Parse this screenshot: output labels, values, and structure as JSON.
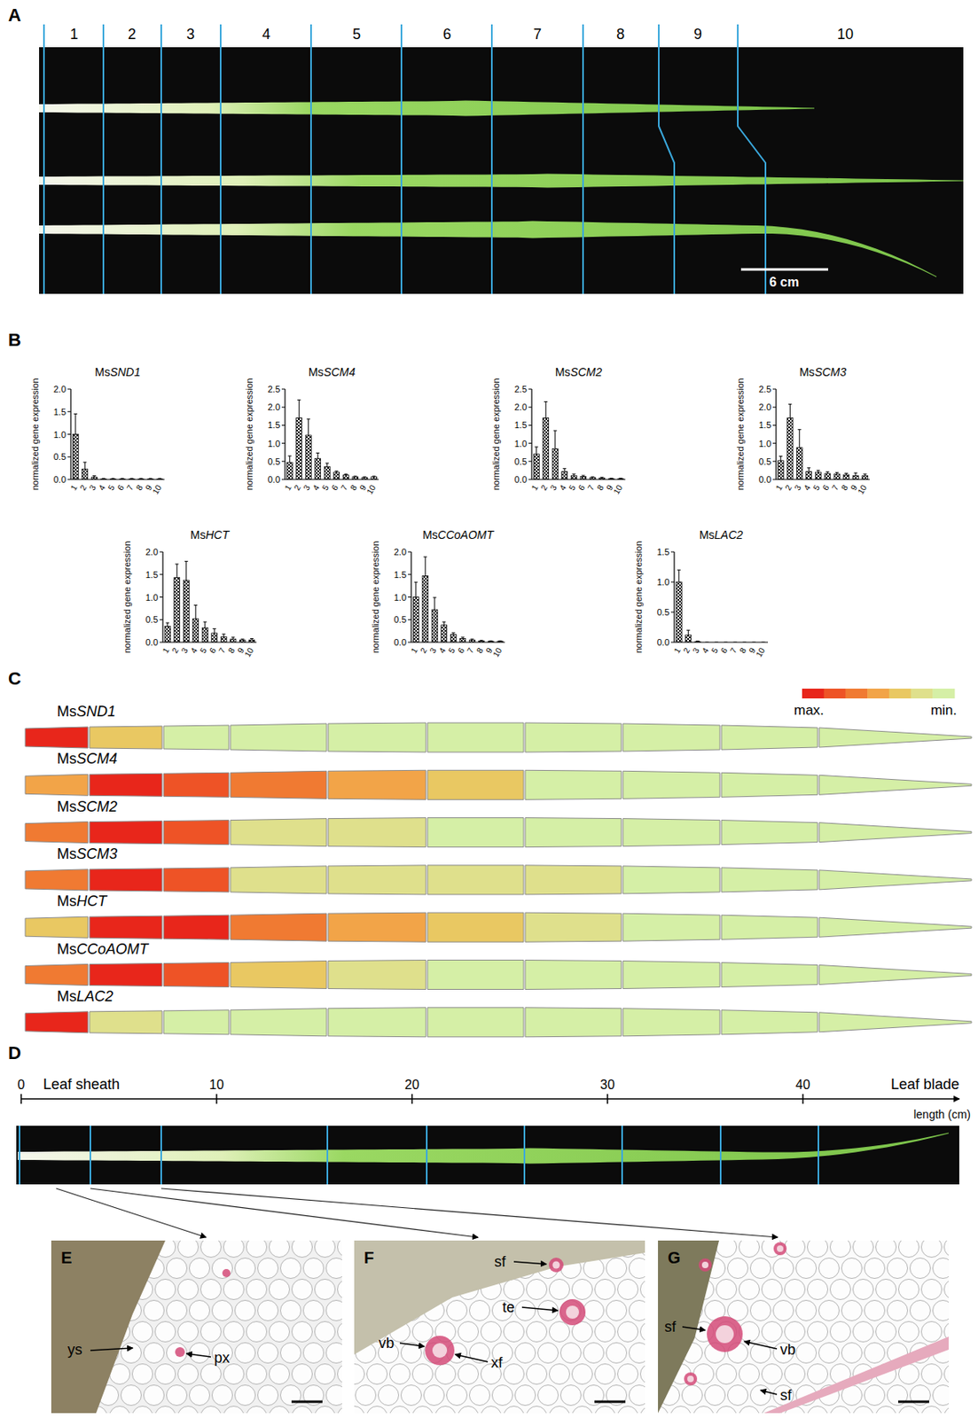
{
  "panel_a": {
    "letter": "A",
    "segments": [
      "1",
      "2",
      "3",
      "4",
      "5",
      "6",
      "7",
      "8",
      "9",
      "10"
    ],
    "scale_bar": "6 cm"
  },
  "panel_b": {
    "letter": "B"
  },
  "chart_data": [
    {
      "type": "bar",
      "title": "MsSND1",
      "y_label": "normalized gene expression",
      "color": "#000000",
      "categories": [
        "1",
        "2",
        "3",
        "4",
        "5",
        "6",
        "7",
        "8",
        "9",
        "10"
      ],
      "values": [
        1.0,
        0.23,
        0.05,
        0.01,
        0.01,
        0.01,
        0.01,
        0.01,
        0.01,
        0.01
      ],
      "errors": [
        0.45,
        0.15,
        0.03,
        0.01,
        0.01,
        0.01,
        0.01,
        0.01,
        0.01,
        0.01
      ],
      "ylim": [
        0,
        2
      ],
      "yticks": [
        {
          "value": 0,
          "label": "0.0"
        },
        {
          "value": 0.5,
          "label": "0.5"
        },
        {
          "value": 1,
          "label": "1.0"
        },
        {
          "value": 1.5,
          "label": "1.5"
        },
        {
          "value": 2,
          "label": "2.0"
        }
      ]
    },
    {
      "type": "bar",
      "title": "MsSCM4",
      "y_label": "normalized gene expression",
      "color": "#000000",
      "categories": [
        "1",
        "2",
        "3",
        "4",
        "5",
        "6",
        "7",
        "8",
        "9",
        "10"
      ],
      "values": [
        0.47,
        1.7,
        1.22,
        0.58,
        0.35,
        0.2,
        0.12,
        0.07,
        0.05,
        0.07
      ],
      "errors": [
        0.18,
        0.5,
        0.45,
        0.15,
        0.1,
        0.03,
        0.03,
        0.02,
        0.02,
        0.02
      ],
      "ylim": [
        0,
        2.5
      ],
      "yticks": [
        {
          "value": 0,
          "label": "0.0"
        },
        {
          "value": 0.5,
          "label": "0.5"
        },
        {
          "value": 1,
          "label": "1.0"
        },
        {
          "value": 1.5,
          "label": "1.5"
        },
        {
          "value": 2,
          "label": "2.0"
        },
        {
          "value": 2.5,
          "label": "2.5"
        }
      ]
    },
    {
      "type": "bar",
      "title": "MsSCM2",
      "y_label": "normalized gene expression",
      "color": "#000000",
      "categories": [
        "1",
        "2",
        "3",
        "4",
        "5",
        "6",
        "7",
        "8",
        "9",
        "10"
      ],
      "values": [
        0.7,
        1.7,
        0.85,
        0.22,
        0.1,
        0.08,
        0.05,
        0.04,
        0.02,
        0.02
      ],
      "errors": [
        0.2,
        0.45,
        0.5,
        0.08,
        0.05,
        0.03,
        0.02,
        0.02,
        0.01,
        0.01
      ],
      "ylim": [
        0,
        2.5
      ],
      "yticks": [
        {
          "value": 0,
          "label": "0.0"
        },
        {
          "value": 0.5,
          "label": "0.5"
        },
        {
          "value": 1,
          "label": "1.0"
        },
        {
          "value": 1.5,
          "label": "1.5"
        },
        {
          "value": 2,
          "label": "2.0"
        },
        {
          "value": 2.5,
          "label": "2.5"
        }
      ]
    },
    {
      "type": "bar",
      "title": "MsSCM3",
      "y_label": "normalized gene expression",
      "color": "#000000",
      "categories": [
        "1",
        "2",
        "3",
        "4",
        "5",
        "6",
        "7",
        "8",
        "9",
        "10"
      ],
      "values": [
        0.52,
        1.7,
        0.88,
        0.22,
        0.2,
        0.16,
        0.15,
        0.13,
        0.1,
        0.1
      ],
      "errors": [
        0.12,
        0.38,
        0.5,
        0.1,
        0.05,
        0.05,
        0.04,
        0.04,
        0.08,
        0.05
      ],
      "ylim": [
        0,
        2.5
      ],
      "yticks": [
        {
          "value": 0,
          "label": "0.0"
        },
        {
          "value": 0.5,
          "label": "0.5"
        },
        {
          "value": 1,
          "label": "1.0"
        },
        {
          "value": 1.5,
          "label": "1.5"
        },
        {
          "value": 2,
          "label": "2.0"
        },
        {
          "value": 2.5,
          "label": "2.5"
        }
      ]
    },
    {
      "type": "bar",
      "title": "MsHCT",
      "y_label": "normalized gene expression",
      "color": "#000000",
      "categories": [
        "1",
        "2",
        "3",
        "4",
        "5",
        "6",
        "7",
        "8",
        "9",
        "10"
      ],
      "values": [
        0.35,
        1.43,
        1.37,
        0.52,
        0.32,
        0.2,
        0.12,
        0.07,
        0.05,
        0.05
      ],
      "errors": [
        0.08,
        0.3,
        0.42,
        0.3,
        0.13,
        0.1,
        0.06,
        0.04,
        0.02,
        0.03
      ],
      "ylim": [
        0,
        2
      ],
      "yticks": [
        {
          "value": 0,
          "label": "0.0"
        },
        {
          "value": 0.5,
          "label": "0.5"
        },
        {
          "value": 1,
          "label": "1.0"
        },
        {
          "value": 1.5,
          "label": "1.5"
        },
        {
          "value": 2,
          "label": "2.0"
        }
      ]
    },
    {
      "type": "bar",
      "title": "MsCCoAOMT",
      "y_label": "normalized gene expression",
      "color": "#000000",
      "categories": [
        "1",
        "2",
        "3",
        "4",
        "5",
        "6",
        "7",
        "8",
        "9",
        "10"
      ],
      "values": [
        1.0,
        1.47,
        0.72,
        0.38,
        0.17,
        0.08,
        0.05,
        0.03,
        0.02,
        0.02
      ],
      "errors": [
        0.33,
        0.42,
        0.27,
        0.07,
        0.04,
        0.03,
        0.02,
        0.01,
        0.01,
        0.01
      ],
      "ylim": [
        0,
        2
      ],
      "yticks": [
        {
          "value": 0,
          "label": "0.0"
        },
        {
          "value": 0.5,
          "label": "0.5"
        },
        {
          "value": 1,
          "label": "1.0"
        },
        {
          "value": 1.5,
          "label": "1.5"
        },
        {
          "value": 2,
          "label": "2.0"
        }
      ]
    },
    {
      "type": "bar",
      "title": "MsLAC2",
      "y_label": "normalized gene expression",
      "color": "#000000",
      "categories": [
        "1",
        "2",
        "3",
        "4",
        "5",
        "6",
        "7",
        "8",
        "9",
        "10"
      ],
      "values": [
        1.0,
        0.12,
        0.01,
        0,
        0,
        0,
        0,
        0,
        0,
        0
      ],
      "errors": [
        0.2,
        0.08,
        0.01,
        0,
        0,
        0,
        0,
        0,
        0,
        0
      ],
      "ylim": [
        0,
        1.5
      ],
      "yticks": [
        {
          "value": 0,
          "label": "0.0"
        },
        {
          "value": 0.5,
          "label": "0.5"
        },
        {
          "value": 1,
          "label": "1.0"
        },
        {
          "value": 1.5,
          "label": "1.5"
        }
      ]
    }
  ],
  "panel_c": {
    "letter": "C",
    "scale": {
      "max": "max.",
      "min": "min.",
      "colors": [
        "#e8261b",
        "#ee5326",
        "#f07a32",
        "#f2a448",
        "#e9c862",
        "#dfe08c",
        "#d5efa6"
      ]
    },
    "genes": [
      {
        "name": "MsSND1",
        "colors": [
          "#e8261b",
          "#e9c862",
          "#d5efa6",
          "#d5efa6",
          "#d5efa6",
          "#d5efa6",
          "#d5efa6",
          "#d5efa6",
          "#d5efa6",
          "#d5efa6"
        ]
      },
      {
        "name": "MsSCM4",
        "colors": [
          "#f2a448",
          "#e8261b",
          "#ee5326",
          "#f07a32",
          "#f2a448",
          "#e9c862",
          "#d5efa6",
          "#d5efa6",
          "#d5efa6",
          "#d5efa6"
        ]
      },
      {
        "name": "MsSCM2",
        "colors": [
          "#f07a32",
          "#e8261b",
          "#ee5326",
          "#dfe08c",
          "#dfe08c",
          "#d5efa6",
          "#d5efa6",
          "#d5efa6",
          "#d5efa6",
          "#d5efa6"
        ]
      },
      {
        "name": "MsSCM3",
        "colors": [
          "#f07a32",
          "#e8261b",
          "#ee5326",
          "#dfe08c",
          "#dfe08c",
          "#dfe08c",
          "#dfe08c",
          "#d5efa6",
          "#d5efa6",
          "#d5efa6"
        ]
      },
      {
        "name": "MsHCT",
        "colors": [
          "#e9c862",
          "#e8261b",
          "#e8261b",
          "#f07a32",
          "#f2a448",
          "#e9c862",
          "#dfe08c",
          "#d5efa6",
          "#d5efa6",
          "#d5efa6"
        ]
      },
      {
        "name": "MsCCoAOMT",
        "colors": [
          "#f07a32",
          "#e8261b",
          "#ee5326",
          "#e9c862",
          "#dfe08c",
          "#d5efa6",
          "#d5efa6",
          "#d5efa6",
          "#d5efa6",
          "#d5efa6"
        ]
      },
      {
        "name": "MsLAC2",
        "colors": [
          "#e8261b",
          "#dfe08c",
          "#d5efa6",
          "#d5efa6",
          "#d5efa6",
          "#d5efa6",
          "#d5efa6",
          "#d5efa6",
          "#d5efa6",
          "#d5efa6"
        ]
      }
    ]
  },
  "panel_d": {
    "letter": "D",
    "start_label": "Leaf sheath",
    "end_label": "Leaf blade",
    "axis_label": "length (cm)",
    "lim": [
      0,
      48
    ],
    "ticks": [
      0,
      10,
      20,
      30,
      40
    ]
  },
  "micrographs": [
    {
      "letter": "E",
      "labels": [
        "ys",
        "px"
      ]
    },
    {
      "letter": "F",
      "labels": [
        "sf",
        "te",
        "vb",
        "xf"
      ]
    },
    {
      "letter": "G",
      "labels": [
        "sf",
        "vb",
        "sf"
      ]
    }
  ]
}
